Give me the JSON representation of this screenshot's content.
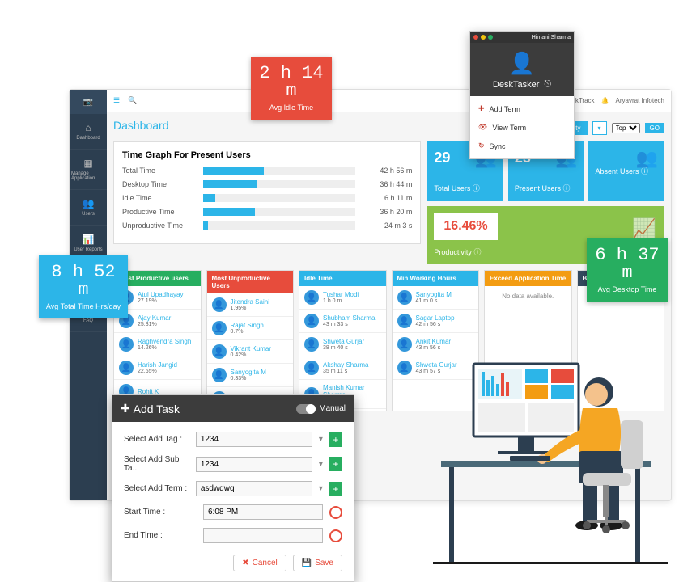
{
  "sidebar": {
    "items": [
      {
        "label": "Dashboard",
        "icon": "⌂"
      },
      {
        "label": "Manage Application",
        "icon": "▦"
      },
      {
        "label": "Users",
        "icon": "👥"
      },
      {
        "label": "User Reports",
        "icon": "📊"
      },
      {
        "label": "Analytics",
        "icon": "📈"
      },
      {
        "label": "FAQ",
        "icon": "?"
      }
    ]
  },
  "topbar": {
    "desktrack": "DeskTrack",
    "company": "Aryavrat Infotech",
    "go": "GO",
    "dropdown": "Top"
  },
  "page_title": "Dashboard",
  "company_productivity_btn": "Company Productivity",
  "time_graph": {
    "title": "Time Graph For Present Users",
    "rows": [
      {
        "label": "Total Time",
        "value": "42 h 56 m",
        "pct": 40
      },
      {
        "label": "Desktop Time",
        "value": "36 h 44 m",
        "pct": 35
      },
      {
        "label": "Idle Time",
        "value": "6 h 11 m",
        "pct": 8
      },
      {
        "label": "Productive Time",
        "value": "36 h 20 m",
        "pct": 34
      },
      {
        "label": "Unproductive Time",
        "value": "24 m 3 s",
        "pct": 3
      }
    ]
  },
  "stats": [
    {
      "num": "29",
      "label": "Total Users",
      "color": "blue"
    },
    {
      "num": "25",
      "label": "Present Users",
      "color": "blue"
    },
    {
      "num": "",
      "label": "Absent Users",
      "color": "blue"
    }
  ],
  "productivity": {
    "value": "16.46%",
    "label": "Productivity"
  },
  "lists": [
    {
      "title": "Most Productive users",
      "color": "lh-green",
      "items": [
        {
          "name": "Atul Upadhayay",
          "val": "27.19%"
        },
        {
          "name": "Ajay Kumar",
          "val": "25.31%"
        },
        {
          "name": "Raghvendra Singh",
          "val": "14.26%"
        },
        {
          "name": "Harish Jangid",
          "val": "22.65%"
        },
        {
          "name": "Rohit K",
          "val": ""
        }
      ]
    },
    {
      "title": "Most Unproductive Users",
      "color": "lh-red",
      "items": [
        {
          "name": "Jitendra Saini",
          "val": "1.95%"
        },
        {
          "name": "Rajat Singh",
          "val": "0.7%"
        },
        {
          "name": "Vikrant Kumar",
          "val": "0.42%"
        },
        {
          "name": "Sanyogita M",
          "val": "0.33%"
        },
        {
          "name": "Rahul Singh",
          "val": ""
        }
      ]
    },
    {
      "title": "Idle Time",
      "color": "lh-blue",
      "items": [
        {
          "name": "Tushar Modi",
          "val": "1 h 0 m"
        },
        {
          "name": "Shubham Sharma",
          "val": "43 m 33 s"
        },
        {
          "name": "Shweta Gurjar",
          "val": "38 m 40 s"
        },
        {
          "name": "Akshay Sharma",
          "val": "35 m 11 s"
        },
        {
          "name": "Manish Kumar Sharma",
          "val": "1 h 0 m"
        }
      ]
    },
    {
      "title": "Min Working Hours",
      "color": "lh-blue",
      "items": [
        {
          "name": "Sanyogita M",
          "val": "41 m 0 s"
        },
        {
          "name": "Sagar Laptop",
          "val": "42 m 56 s"
        },
        {
          "name": "Ankit Kumar",
          "val": "43 m 56 s"
        },
        {
          "name": "Shweta Gurjar",
          "val": "43 m 57 s"
        }
      ]
    },
    {
      "title": "Exceed Application Time",
      "color": "lh-orange",
      "items": [],
      "nodata": "No data available."
    },
    {
      "title": "Blacklisted Urls",
      "color": "lh-dark",
      "items": [],
      "nodata": "No data a"
    }
  ],
  "badges": {
    "red": {
      "value": "2 h 14 m",
      "label": "Avg Idle Time"
    },
    "blue": {
      "value": "8 h 52 m",
      "label": "Avg Total Time Hrs/day"
    },
    "green": {
      "value": "6 h 37 m",
      "label": "Avg Desktop Time"
    }
  },
  "desktasker": {
    "user": "Himani Sharma",
    "title": "DeskTasker",
    "menu": [
      {
        "icon": "✚",
        "label": "Add Term"
      },
      {
        "icon": "👁",
        "label": "View Term"
      },
      {
        "icon": "↻",
        "label": "Sync"
      }
    ]
  },
  "addtask": {
    "title": "Add Task",
    "manual": "Manual",
    "rows": {
      "tag_label": "Select Add Tag :",
      "tag_val": "1234",
      "subtag_label": "Select Add Sub Ta...",
      "subtag_val": "1234",
      "term_label": "Select Add Term :",
      "term_val": "asdwdwq",
      "start_label": "Start Time :",
      "start_val": "6:08 PM",
      "end_label": "End Time :",
      "end_val": ""
    },
    "cancel": "Cancel",
    "save": "Save"
  }
}
